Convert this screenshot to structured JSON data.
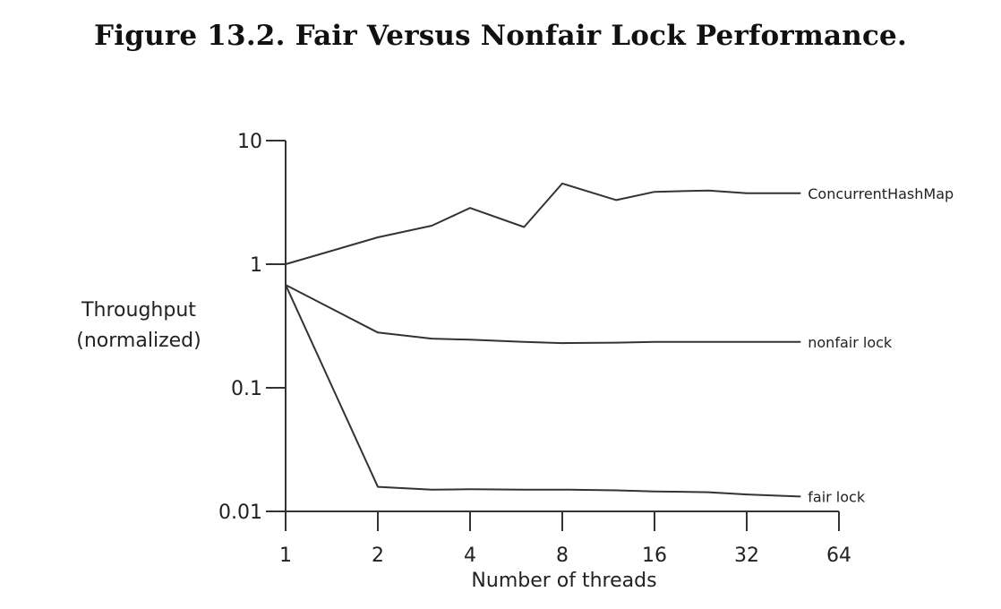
{
  "chart_data": {
    "type": "line",
    "title": "Figure 13.2. Fair Versus Nonfair Lock Performance.",
    "xlabel": "Number of threads",
    "ylabel_line1": "Throughput",
    "ylabel_line2": "(normalized)",
    "xscale": "log2",
    "yscale": "log10",
    "xlim": [
      1,
      64
    ],
    "ylim": [
      0.01,
      10
    ],
    "x_ticks": [
      1,
      2,
      4,
      8,
      16,
      32,
      64
    ],
    "x_tick_labels": [
      "1",
      "2",
      "4",
      "8",
      "16",
      "32",
      "64"
    ],
    "y_ticks": [
      0.01,
      0.1,
      1,
      10
    ],
    "y_tick_labels": [
      "0.01",
      "0.1",
      "1",
      "10"
    ],
    "grid": false,
    "legend": "inline labels at right end of each line",
    "series": [
      {
        "name": "ConcurrentHashMap",
        "x": [
          1,
          2,
          3,
          4,
          6,
          8,
          12,
          16,
          24,
          32,
          48
        ],
        "y": [
          1.0,
          1.65,
          2.05,
          2.85,
          2.0,
          4.5,
          3.3,
          3.85,
          3.95,
          3.75,
          3.75
        ]
      },
      {
        "name": "nonfair lock",
        "x": [
          1,
          2,
          3,
          4,
          6,
          8,
          12,
          16,
          24,
          32,
          48
        ],
        "y": [
          0.68,
          0.28,
          0.25,
          0.245,
          0.235,
          0.23,
          0.232,
          0.235,
          0.235,
          0.235,
          0.235
        ]
      },
      {
        "name": "fair lock",
        "x": [
          1,
          2,
          3,
          4,
          6,
          8,
          12,
          16,
          24,
          32,
          48
        ],
        "y": [
          0.68,
          0.0158,
          0.015,
          0.0151,
          0.015,
          0.015,
          0.0148,
          0.0145,
          0.0143,
          0.0137,
          0.0132
        ]
      }
    ],
    "line_color": "#333333"
  }
}
